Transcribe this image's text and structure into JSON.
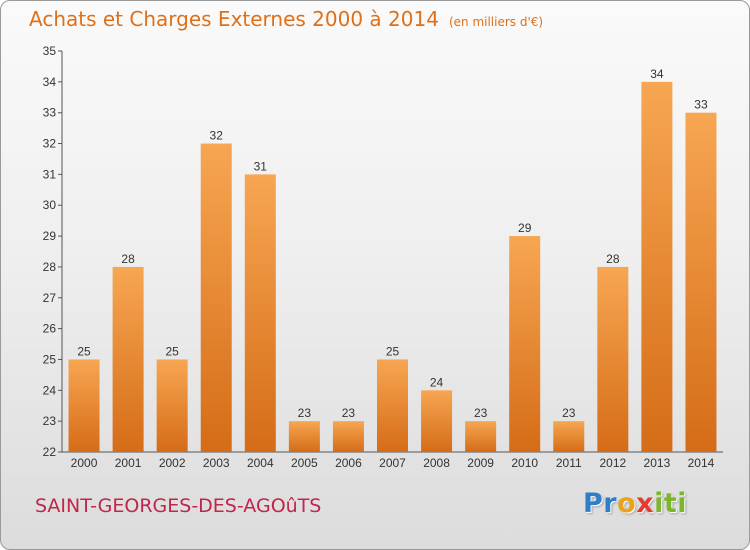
{
  "title": "Achats et Charges Externes 2000 à 2014",
  "unit": "(en milliers d'€)",
  "commune": "SAINT-GEORGES-DES-AGOûTS",
  "logo": "Proxiti",
  "colors": {
    "title": "#e07018",
    "bar_light": "#f7a652",
    "bar_dark": "#d56c17",
    "commune": "#c0264a"
  },
  "chart_data": {
    "type": "bar",
    "title": "Achats et Charges Externes 2000 à 2014",
    "subtitle": "(en milliers d'€)",
    "xlabel": "",
    "ylabel": "",
    "categories": [
      "2000",
      "2001",
      "2002",
      "2003",
      "2004",
      "2005",
      "2006",
      "2007",
      "2008",
      "2009",
      "2010",
      "2011",
      "2012",
      "2013",
      "2014"
    ],
    "values": [
      25,
      28,
      25,
      32,
      31,
      23,
      23,
      25,
      24,
      23,
      29,
      23,
      28,
      34,
      33
    ],
    "ylim": [
      22,
      35
    ],
    "yticks": [
      22,
      23,
      24,
      25,
      26,
      27,
      28,
      29,
      30,
      31,
      32,
      33,
      34,
      35
    ],
    "grid": false,
    "legend": "none"
  }
}
